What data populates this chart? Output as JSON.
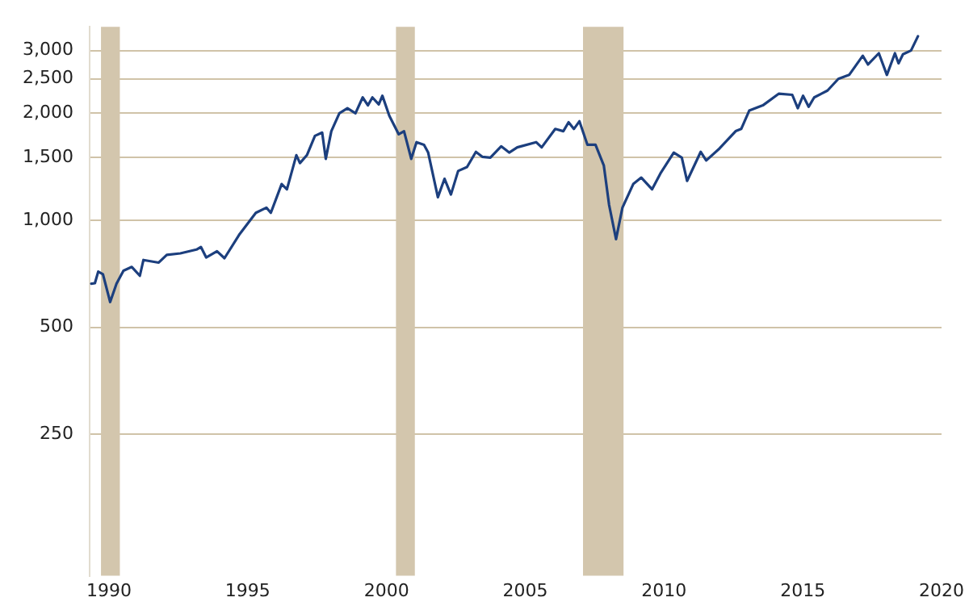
{
  "chart_data": {
    "type": "line",
    "log": "y",
    "grid": "y",
    "legend": false,
    "marker": "none",
    "line_style": "solid",
    "xlim": [
      1989.3,
      2020
    ],
    "xticks": [
      1990,
      1995,
      2000,
      2005,
      2010,
      2015,
      2020
    ],
    "ylim": [
      100,
      3500
    ],
    "yticks": [
      250,
      500,
      {
        "value": 1000,
        "label": "1,000"
      },
      {
        "value": 1500,
        "label": "1,500"
      },
      {
        "value": 2000,
        "label": "2,000"
      },
      {
        "value": 2500,
        "label": "2,500"
      },
      {
        "value": 3000,
        "label": "3,000"
      }
    ],
    "bands": [
      {
        "axis": "x",
        "from": 1989.71,
        "to": 1990.39,
        "color": "#d3c6ad"
      },
      {
        "axis": "x",
        "from": 2000.34,
        "to": 2001.02,
        "color": "#d3c6ad"
      },
      {
        "axis": "x",
        "from": 2007.08,
        "to": 2008.54,
        "color": "#d3c6ad"
      }
    ],
    "series": [
      {
        "color": "#1c3f7e",
        "x": [
          1989.36,
          1989.49,
          1989.61,
          1989.78,
          1990.04,
          1990.27,
          1990.52,
          1990.82,
          1991.11,
          1991.24,
          1991.79,
          1992.08,
          1992.57,
          1993.15,
          1993.31,
          1993.5,
          1993.89,
          1994.16,
          1994.71,
          1995.29,
          1995.67,
          1995.83,
          1996.22,
          1996.41,
          1996.75,
          1996.88,
          1997.13,
          1997.42,
          1997.68,
          1997.81,
          1998.01,
          1998.3,
          1998.59,
          1998.88,
          1999.14,
          1999.33,
          1999.49,
          1999.72,
          1999.85,
          2000.1,
          2000.44,
          2000.63,
          2000.89,
          2001.08,
          2001.35,
          2001.5,
          2001.85,
          2002.09,
          2002.32,
          2002.58,
          2002.9,
          2003.22,
          2003.45,
          2003.74,
          2004.13,
          2004.42,
          2004.71,
          2005.39,
          2005.59,
          2006.08,
          2006.37,
          2006.56,
          2006.75,
          2006.95,
          2007.24,
          2007.53,
          2007.83,
          2008.02,
          2008.27,
          2008.5,
          2008.89,
          2009.18,
          2009.57,
          2009.87,
          2010.35,
          2010.64,
          2010.83,
          2011.32,
          2011.52,
          2012.0,
          2012.58,
          2012.78,
          2013.07,
          2013.56,
          2014.14,
          2014.62,
          2014.82,
          2015.01,
          2015.21,
          2015.41,
          2015.89,
          2016.28,
          2016.67,
          2017.16,
          2017.35,
          2017.74,
          2018.03,
          2018.32,
          2018.45,
          2018.61,
          2018.9,
          2019.15
        ],
        "values": [
          663,
          665,
          717,
          705,
          589,
          663,
          721,
          739,
          698,
          773,
          760,
          799,
          807,
          827,
          841,
          786,
          818,
          782,
          915,
          1049,
          1085,
          1049,
          1264,
          1222,
          1524,
          1448,
          1524,
          1727,
          1764,
          1488,
          1780,
          2000,
          2066,
          2000,
          2215,
          2104,
          2215,
          2118,
          2240,
          1966,
          1745,
          1780,
          1488,
          1658,
          1630,
          1550,
          1161,
          1308,
          1181,
          1376,
          1411,
          1557,
          1508,
          1500,
          1614,
          1550,
          1603,
          1658,
          1603,
          1806,
          1780,
          1886,
          1806,
          1898,
          1630,
          1630,
          1425,
          1104,
          885,
          1085,
          1264,
          1318,
          1222,
          1354,
          1550,
          1500,
          1290,
          1557,
          1473,
          1592,
          1780,
          1806,
          2034,
          2104,
          2270,
          2253,
          2066,
          2240,
          2085,
          2215,
          2316,
          2498,
          2563,
          2901,
          2741,
          2949,
          2563,
          2949,
          2763,
          2929,
          3001,
          3293
        ]
      }
    ]
  }
}
